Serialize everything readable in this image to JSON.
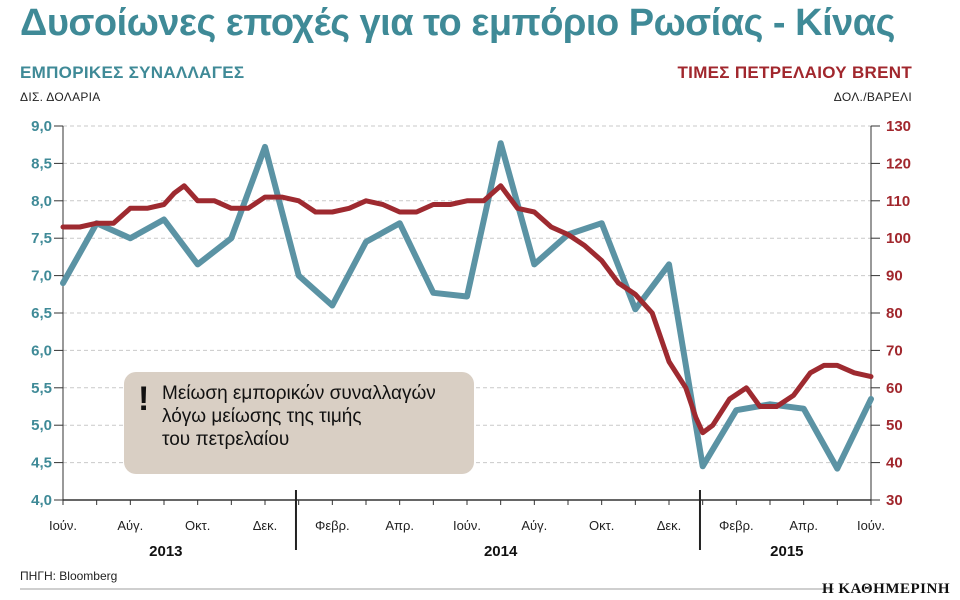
{
  "title": "Δυσοίωνες εποχές για το εμπόριο Ρωσίας - Κίνας",
  "left_axis": {
    "label": "ΕΜΠΟΡΙΚΕΣ ΣΥΝΑΛΛΑΓΕΣ",
    "unit": "ΔΙΣ. ΔΟΛΑΡΙΑ"
  },
  "right_axis": {
    "label": "ΤΙΜΕΣ ΠΕΤΡΕΛΑΙΟΥ BRENT",
    "unit": "ΔΟΛ./ΒΑΡΕΛΙ"
  },
  "annotation": {
    "mark": "!",
    "lines": [
      "Μείωση εμπορικών συναλλαγών",
      "λόγω μείωσης της τιμής",
      "του πετρελαίου"
    ]
  },
  "source": "ΠΗΓΗ: Bloomberg",
  "brand": "Η ΚΑΘΗΜΕΡΙΝΗ",
  "colors": {
    "trade": "#5b93a4",
    "oil": "#9e2a30",
    "trade_text": "#3f8a97",
    "oil_text": "#a1272d"
  },
  "chart_data": {
    "type": "line",
    "x_tick_labels": [
      {
        "label": "Ιούν.",
        "month": 0
      },
      {
        "label": "Αύγ.",
        "month": 2
      },
      {
        "label": "Οκτ.",
        "month": 4
      },
      {
        "label": "Δεκ.",
        "month": 6
      },
      {
        "label": "Φεβρ.",
        "month": 8
      },
      {
        "label": "Απρ.",
        "month": 10
      },
      {
        "label": "Ιούν.",
        "month": 12
      },
      {
        "label": "Αύγ.",
        "month": 14
      },
      {
        "label": "Οκτ.",
        "month": 16
      },
      {
        "label": "Δεκ.",
        "month": 18
      },
      {
        "label": "Φεβρ.",
        "month": 20
      },
      {
        "label": "Απρ.",
        "month": 22
      },
      {
        "label": "Ιούν.",
        "month": 24
      }
    ],
    "years": [
      {
        "label": "2013",
        "start": 0,
        "end": 7
      },
      {
        "label": "2014",
        "start": 7,
        "end": 19
      },
      {
        "label": "2015",
        "start": 19,
        "end": 24
      }
    ],
    "y_left": {
      "min": 4.0,
      "max": 9.0,
      "ticks": [
        "4,0",
        "4,5",
        "5,0",
        "5,5",
        "6,0",
        "6,5",
        "7,0",
        "7,5",
        "8,0",
        "8,5",
        "9,0"
      ]
    },
    "y_right": {
      "min": 30,
      "max": 130,
      "ticks": [
        "30",
        "40",
        "50",
        "60",
        "70",
        "80",
        "90",
        "100",
        "110",
        "120",
        "130"
      ]
    },
    "series": [
      {
        "axis": "left",
        "points": [
          [
            0,
            6.9
          ],
          [
            1,
            7.7
          ],
          [
            2,
            7.5
          ],
          [
            3,
            7.75
          ],
          [
            4,
            7.15
          ],
          [
            5,
            7.5
          ],
          [
            6,
            8.72
          ],
          [
            7,
            7.0
          ],
          [
            8,
            6.6
          ],
          [
            9,
            7.45
          ],
          [
            10,
            7.7
          ],
          [
            11,
            6.77
          ],
          [
            12,
            6.72
          ],
          [
            13,
            8.77
          ],
          [
            14,
            7.15
          ],
          [
            15,
            7.55
          ],
          [
            16,
            7.7
          ],
          [
            17,
            6.55
          ],
          [
            18,
            7.15
          ],
          [
            19,
            4.45
          ],
          [
            20,
            5.2
          ],
          [
            21,
            5.28
          ],
          [
            22,
            5.22
          ],
          [
            23,
            4.42
          ],
          [
            24,
            5.35
          ]
        ]
      },
      {
        "axis": "right",
        "points": [
          [
            0,
            103
          ],
          [
            0.5,
            103
          ],
          [
            1,
            104
          ],
          [
            1.5,
            104
          ],
          [
            2,
            108
          ],
          [
            2.5,
            108
          ],
          [
            3,
            109
          ],
          [
            3.3,
            112
          ],
          [
            3.6,
            114
          ],
          [
            4,
            110
          ],
          [
            4.5,
            110
          ],
          [
            5,
            108
          ],
          [
            5.5,
            108
          ],
          [
            6,
            111
          ],
          [
            6.5,
            111
          ],
          [
            7,
            110
          ],
          [
            7.5,
            107
          ],
          [
            8,
            107
          ],
          [
            8.5,
            108
          ],
          [
            9,
            110
          ],
          [
            9.5,
            109
          ],
          [
            10,
            107
          ],
          [
            10.5,
            107
          ],
          [
            11,
            109
          ],
          [
            11.5,
            109
          ],
          [
            12,
            110
          ],
          [
            12.5,
            110
          ],
          [
            13,
            114
          ],
          [
            13.5,
            108
          ],
          [
            14,
            107
          ],
          [
            14.5,
            103
          ],
          [
            15,
            101
          ],
          [
            15.5,
            98
          ],
          [
            16,
            94
          ],
          [
            16.5,
            88
          ],
          [
            17,
            85
          ],
          [
            17.5,
            80
          ],
          [
            18,
            67
          ],
          [
            18.5,
            60
          ],
          [
            18.8,
            52
          ],
          [
            19,
            48
          ],
          [
            19.3,
            50
          ],
          [
            19.8,
            57
          ],
          [
            20.3,
            60
          ],
          [
            20.7,
            55
          ],
          [
            21.2,
            55
          ],
          [
            21.7,
            58
          ],
          [
            22.2,
            64
          ],
          [
            22.6,
            66
          ],
          [
            23,
            66
          ],
          [
            23.5,
            64
          ],
          [
            24,
            63
          ]
        ]
      }
    ]
  }
}
